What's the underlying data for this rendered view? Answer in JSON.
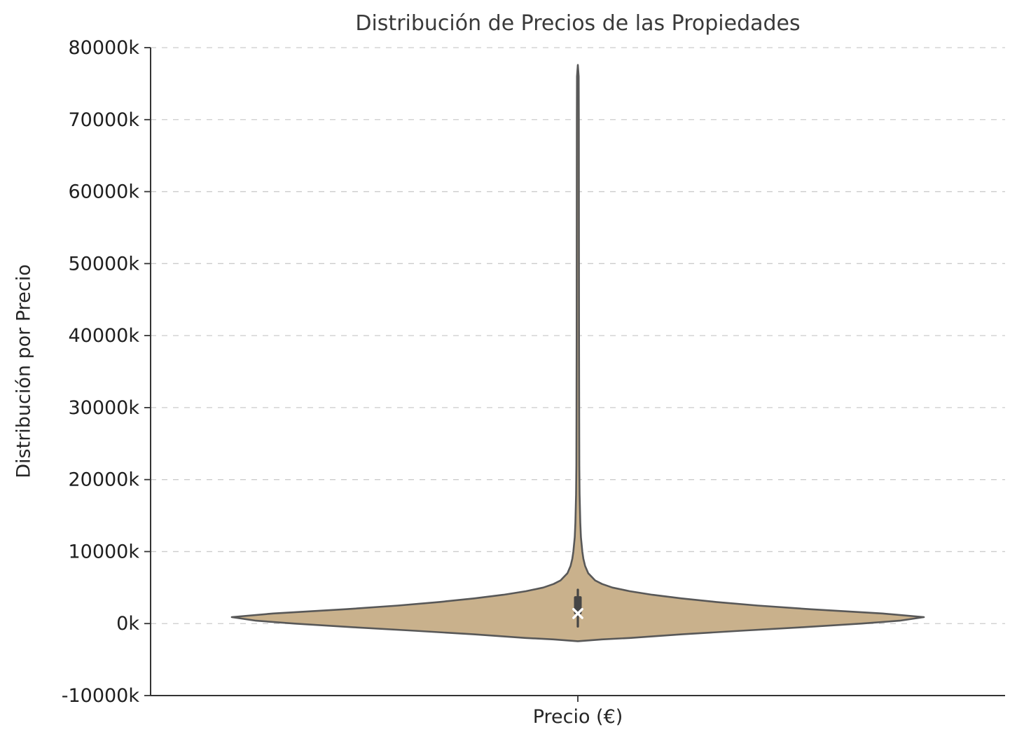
{
  "chart_data": {
    "type": "violin",
    "title": "Distribución de Precios de las Propiedades",
    "xlabel": "Precio (€)",
    "ylabel": "Distribución por Precio",
    "ylim": [
      -10000,
      80000
    ],
    "yticks": {
      "values": [
        -10000,
        0,
        10000,
        20000,
        30000,
        40000,
        50000,
        60000,
        70000,
        80000
      ],
      "labels": [
        "-10000k",
        "0k",
        "10000k",
        "20000k",
        "30000k",
        "40000k",
        "50000k",
        "60000k",
        "70000k",
        "80000k"
      ]
    },
    "grid": {
      "visible": true,
      "style": "dashed",
      "color": "#cccccc"
    },
    "background": "#ffffff",
    "legend": "none",
    "violin": {
      "fill": "#c9b18c",
      "edge": "#585858",
      "min_value_k": -2450,
      "max_value_k": 77600,
      "peak_density_value_k": 900,
      "profile": [
        {
          "v": -2450,
          "d": 0
        },
        {
          "v": -2200,
          "d": 0.07
        },
        {
          "v": -2000,
          "d": 0.15
        },
        {
          "v": -1500,
          "d": 0.3
        },
        {
          "v": -1000,
          "d": 0.47
        },
        {
          "v": -500,
          "d": 0.65
        },
        {
          "v": 0,
          "d": 0.82
        },
        {
          "v": 400,
          "d": 0.93
        },
        {
          "v": 900,
          "d": 1.0
        },
        {
          "v": 1400,
          "d": 0.88
        },
        {
          "v": 2000,
          "d": 0.67
        },
        {
          "v": 2500,
          "d": 0.52
        },
        {
          "v": 3000,
          "d": 0.4
        },
        {
          "v": 3500,
          "d": 0.3
        },
        {
          "v": 4000,
          "d": 0.215
        },
        {
          "v": 4500,
          "d": 0.15
        },
        {
          "v": 5000,
          "d": 0.1
        },
        {
          "v": 5500,
          "d": 0.07
        },
        {
          "v": 6000,
          "d": 0.05
        },
        {
          "v": 7000,
          "d": 0.03
        },
        {
          "v": 8000,
          "d": 0.021
        },
        {
          "v": 9000,
          "d": 0.016
        },
        {
          "v": 10000,
          "d": 0.013
        },
        {
          "v": 12000,
          "d": 0.009
        },
        {
          "v": 14000,
          "d": 0.007
        },
        {
          "v": 16000,
          "d": 0.006
        },
        {
          "v": 18000,
          "d": 0.005
        },
        {
          "v": 22000,
          "d": 0.0042
        },
        {
          "v": 30000,
          "d": 0.0038
        },
        {
          "v": 40000,
          "d": 0.0035
        },
        {
          "v": 50000,
          "d": 0.0033
        },
        {
          "v": 60000,
          "d": 0.0031
        },
        {
          "v": 70000,
          "d": 0.0029
        },
        {
          "v": 76000,
          "d": 0.0025
        },
        {
          "v": 77600,
          "d": 0
        }
      ]
    },
    "box": {
      "whisker_low": -400,
      "q1": 1300,
      "median": 1400,
      "q3": 3800,
      "whisker_high": 4700,
      "color": "#454545",
      "median_marker": "white-x"
    },
    "axis_color": "#333333",
    "tick_label_color": "#1f1f1f"
  }
}
